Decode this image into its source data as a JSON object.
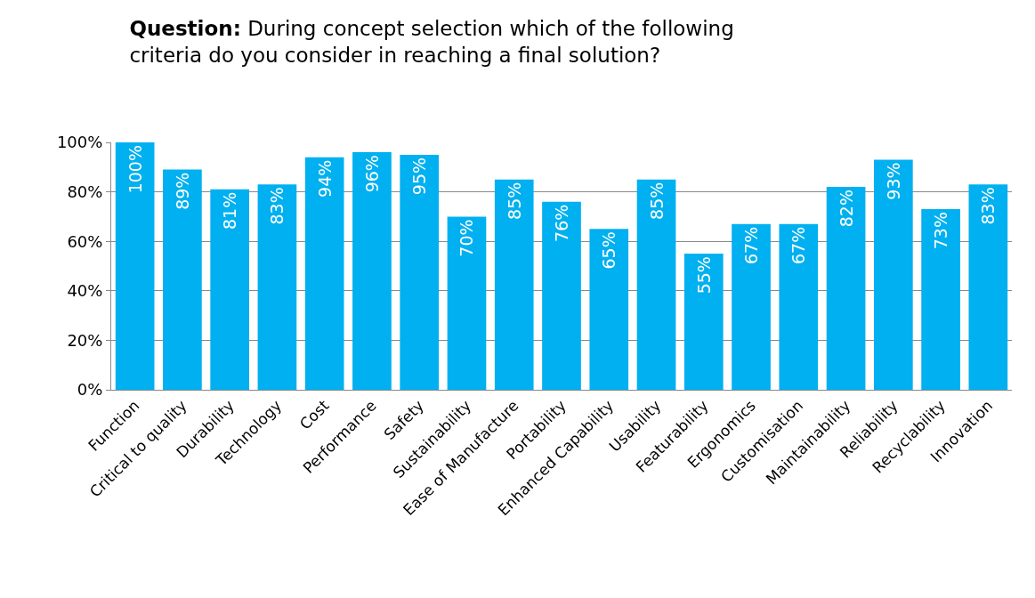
{
  "chart_data": {
    "type": "bar",
    "title": "Question: During concept selection which of the following criteria do you consider in reaching a final solution?",
    "categories": [
      "Function",
      "Critical to quality",
      "Durability",
      "Technology",
      "Cost",
      "Performance",
      "Safety",
      "Sustainability",
      "Ease of Manufacture",
      "Portability",
      "Enhanced Capability",
      "Usability",
      "Featurability",
      "Ergonomics",
      "Customisation",
      "Maintainability",
      "Reliability",
      "Recyclability",
      "Innovation"
    ],
    "values": [
      100,
      89,
      81,
      83,
      94,
      96,
      95,
      70,
      85,
      76,
      65,
      85,
      55,
      67,
      67,
      82,
      93,
      73,
      83
    ],
    "value_labels": [
      "100%",
      "89%",
      "81%",
      "83%",
      "94%",
      "96%",
      "95%",
      "70%",
      "85%",
      "76%",
      "65%",
      "85%",
      "55%",
      "67%",
      "67%",
      "82%",
      "93%",
      "73%",
      "83%"
    ],
    "color": "#00b0f0",
    "ylim": [
      0,
      100
    ],
    "yticks": [
      {
        "value": 0,
        "label": "0%"
      },
      {
        "value": 20,
        "label": "20%"
      },
      {
        "value": 40,
        "label": "40%"
      },
      {
        "value": 60,
        "label": "60%"
      },
      {
        "value": 80,
        "label": "80%"
      },
      {
        "value": 100,
        "label": "100%"
      }
    ],
    "grid": "y"
  }
}
